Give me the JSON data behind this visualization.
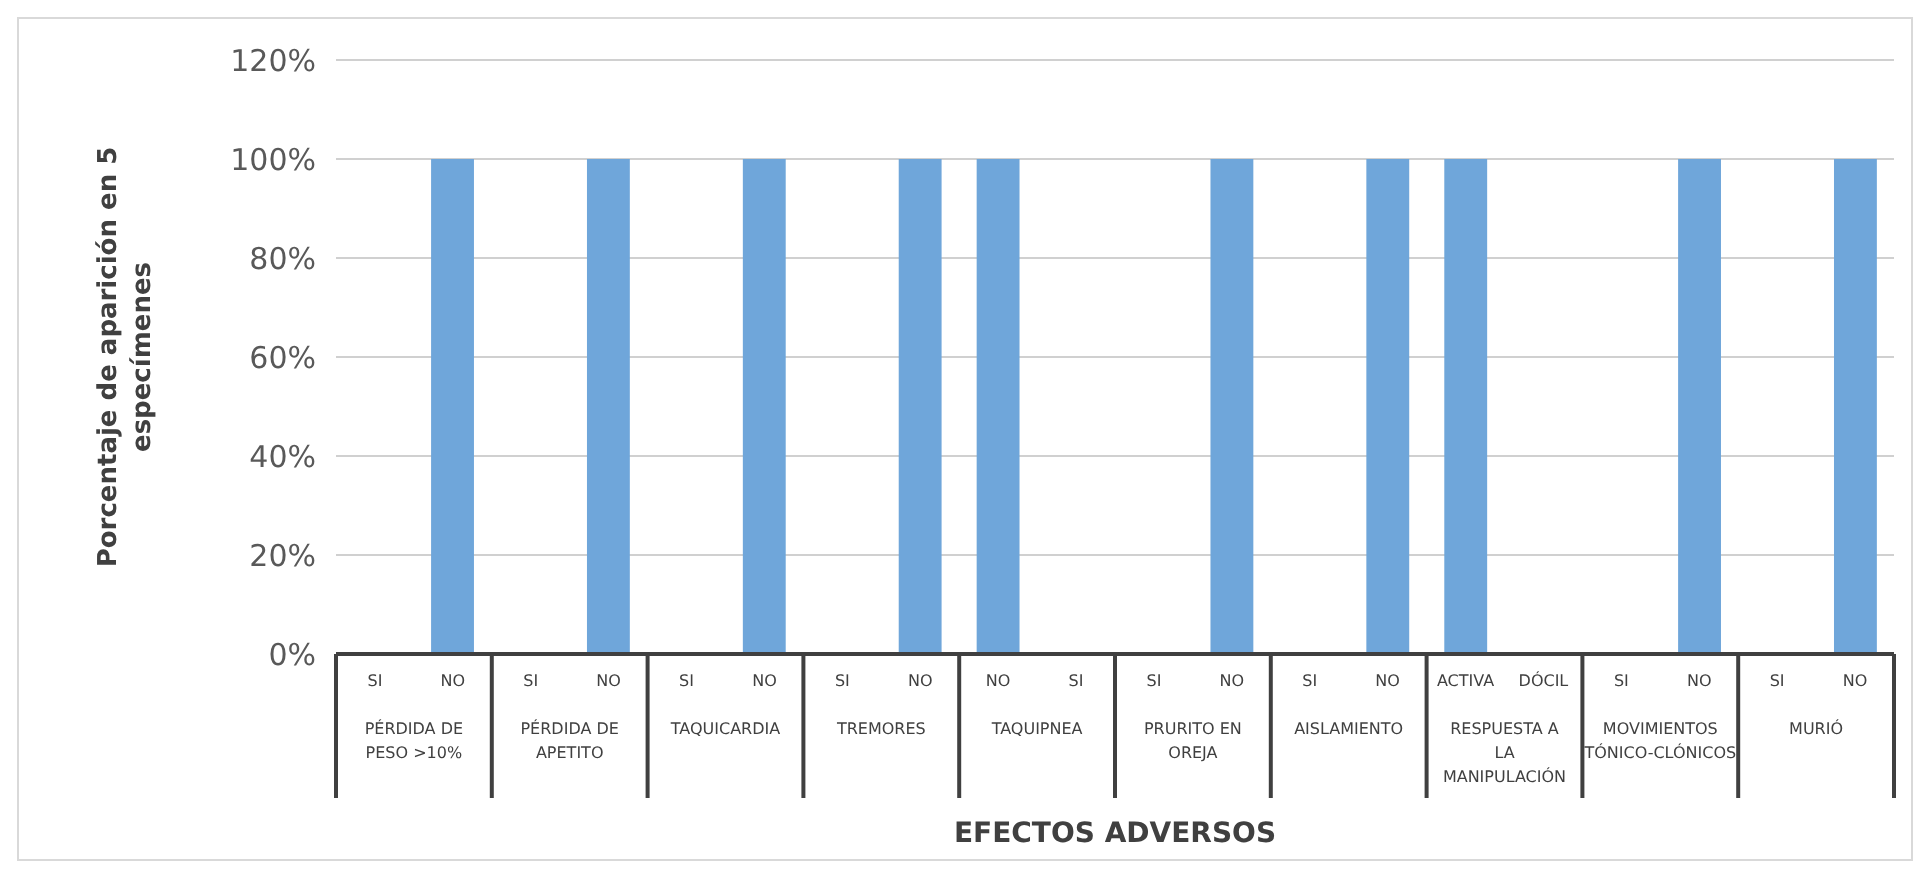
{
  "chart_data": {
    "type": "bar",
    "xlabel": "EFECTOS ADVERSOS",
    "ylabel": "Porcentaje de aparición en 5 especímenes",
    "categories": [
      "SI",
      "NO",
      "SI",
      "NO",
      "SI",
      "NO",
      "SI",
      "NO",
      "NO",
      "SI",
      "SI",
      "NO",
      "SI",
      "NO",
      "ACTIVA",
      "DÓCIL",
      "SI",
      "NO",
      "SI",
      "NO"
    ],
    "values": [
      0,
      100,
      0,
      100,
      0,
      100,
      0,
      100,
      100,
      0,
      0,
      100,
      0,
      100,
      100,
      0,
      0,
      100,
      0,
      100
    ],
    "color": "#6fa6da",
    "ylim": [
      0,
      120
    ],
    "yticks": [
      {
        "value": 0,
        "label": "0%"
      },
      {
        "value": 20,
        "label": "20%"
      },
      {
        "value": 40,
        "label": "40%"
      },
      {
        "value": 60,
        "label": "60%"
      },
      {
        "value": 80,
        "label": "80%"
      },
      {
        "value": 100,
        "label": "100%"
      },
      {
        "value": 120,
        "label": "120%"
      }
    ],
    "grid": "y",
    "annotations": [
      "PÉRDIDA DE PESO >10%",
      "PÉRDIDA DE APETITO",
      "TAQUICARDIA",
      "TREMORES",
      "TAQUIPNEA",
      "PRURITO EN OREJA",
      "AISLAMIENTO",
      "RESPUESTA A LA MANIPULACIÓN",
      "MOVIMIENTOS TÓNICO-CLÓNICOS",
      "MURIÓ"
    ]
  }
}
